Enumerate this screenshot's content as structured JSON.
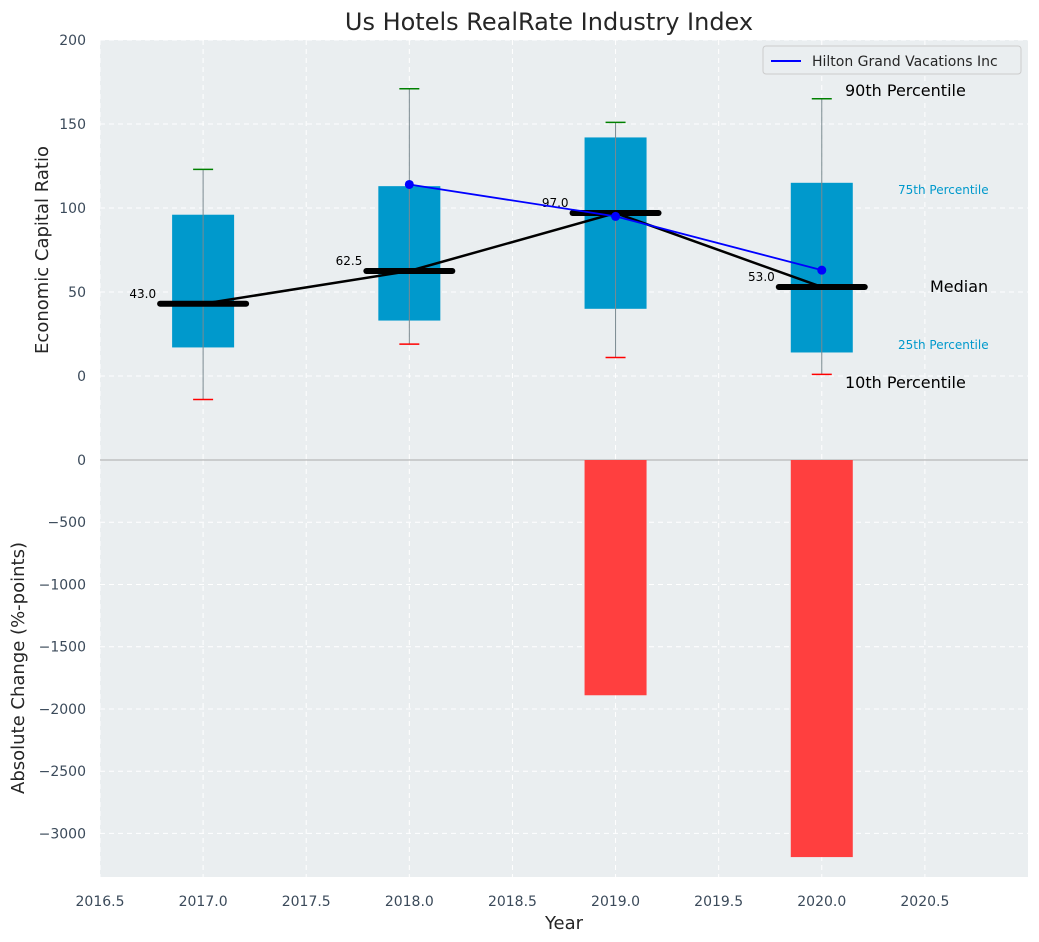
{
  "chart_data": [
    {
      "type": "box",
      "title": "Us Hotels RealRate Industry Index",
      "ylabel": "Economic Capital Ratio",
      "xlim": [
        2016.5,
        2021.0
      ],
      "ylim": [
        -50,
        200
      ],
      "yticks": [
        0,
        50,
        100,
        150,
        200
      ],
      "grid": true,
      "legend_position": "top-right",
      "boxes": [
        {
          "x": 2017,
          "p10": -14,
          "p25": 17,
          "median": 43.0,
          "p75": 96,
          "p90": 123
        },
        {
          "x": 2018,
          "p10": 19,
          "p25": 33,
          "median": 62.5,
          "p75": 113,
          "p90": 171
        },
        {
          "x": 2019,
          "p10": 11,
          "p25": 40,
          "median": 97.0,
          "p75": 142,
          "p90": 151
        },
        {
          "x": 2020,
          "p10": 1,
          "p25": 14,
          "median": 53.0,
          "p75": 115,
          "p90": 165
        }
      ],
      "median_labels": [
        "43.0",
        "62.5",
        "97.0",
        "53.0"
      ],
      "series": [
        {
          "name": "Hilton Grand Vacations Inc",
          "x": [
            2018,
            2019,
            2020
          ],
          "values": [
            114,
            95,
            63
          ]
        }
      ],
      "annotations": {
        "p90": "90th Percentile",
        "p75": "75th Percentile",
        "median": "Median",
        "p25": "25th Percentile",
        "p10": "10th Percentile"
      }
    },
    {
      "type": "bar",
      "ylabel": "Absolute Change (%-points)",
      "xlabel": "Year",
      "x": [
        2019,
        2020
      ],
      "values": [
        -1890,
        -3190
      ],
      "ylim": [
        -3350,
        0
      ],
      "yticks": [
        0,
        -500,
        -1000,
        -1500,
        -2000,
        -2500,
        -3000
      ],
      "ytick_labels": [
        "0",
        "−500",
        "−1000",
        "−1500",
        "−2000",
        "−2500",
        "−3000"
      ],
      "xticks": [
        2016.5,
        2017.0,
        2017.5,
        2018.0,
        2018.5,
        2019.0,
        2019.5,
        2020.0,
        2020.5
      ],
      "xtick_labels": [
        "2016.5",
        "2017.0",
        "2017.5",
        "2018.0",
        "2018.5",
        "2019.0",
        "2019.5",
        "2020.0",
        "2020.5"
      ]
    }
  ],
  "colors": {
    "panel_bg": "#eaeef0",
    "box": "#0099cc",
    "median": "#000000",
    "p90_cap": "#008000",
    "p10_cap": "#ff0000",
    "company_line": "#0000ff",
    "bar": "#ff3f3f"
  }
}
